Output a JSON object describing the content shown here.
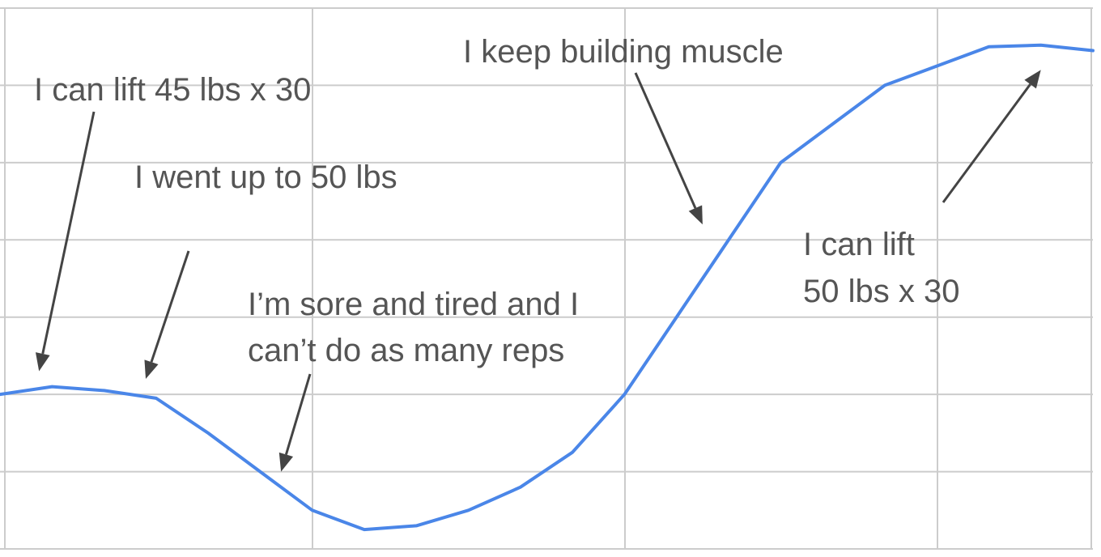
{
  "chart_data": {
    "type": "line",
    "title": "",
    "xlabel": "",
    "ylabel": "",
    "grid": true,
    "legend": "none",
    "series_color": "#4a86e8",
    "annotation_color": "#555555",
    "arrow_color": "#444444",
    "grid_color": "#cccccc",
    "xlim": [
      0,
      21
    ],
    "ylim": [
      0,
      7
    ],
    "x": [
      0,
      1,
      2,
      3,
      4,
      5,
      6,
      7,
      8,
      9,
      10,
      11,
      12,
      13,
      14,
      15,
      16,
      17,
      18,
      19,
      20,
      21
    ],
    "values": [
      2.0,
      2.1,
      2.05,
      1.95,
      1.5,
      1.0,
      0.5,
      0.25,
      0.3,
      0.5,
      0.8,
      1.25,
      2.0,
      3.0,
      4.0,
      5.0,
      5.5,
      6.0,
      6.25,
      6.5,
      6.52,
      6.45
    ],
    "annotations": [
      {
        "lines": [
          "I can lift 45 lbs x 30"
        ],
        "point_x": 0.75,
        "point_y": 2.3
      },
      {
        "lines": [
          "I went up to 50 lbs"
        ],
        "point_x": 2.8,
        "point_y": 2.2
      },
      {
        "lines": [
          "I’m sore and tired and I",
          "can’t do as many reps"
        ],
        "point_x": 5.4,
        "point_y": 1.0
      },
      {
        "lines": [
          "I keep building muscle"
        ],
        "point_x": 13.5,
        "point_y": 4.2
      },
      {
        "lines": [
          "I can lift",
          "50 lbs x 30"
        ],
        "point_x": 20.0,
        "point_y": 6.2
      }
    ]
  }
}
